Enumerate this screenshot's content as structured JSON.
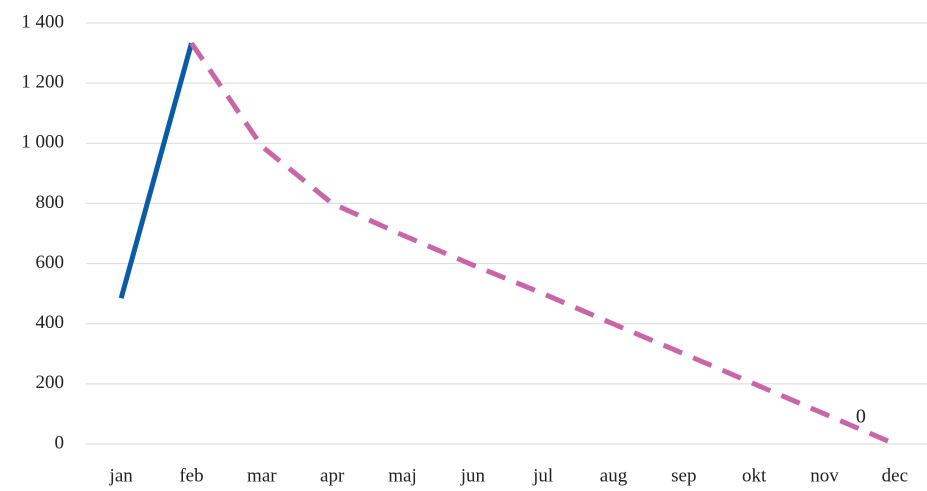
{
  "chart_data": {
    "type": "line",
    "categories": [
      "jan",
      "feb",
      "mar",
      "apr",
      "maj",
      "jun",
      "jul",
      "aug",
      "sep",
      "okt",
      "nov",
      "dec"
    ],
    "series": [
      {
        "color": "#0b5ca6",
        "dash": false,
        "values": [
          485,
          1333,
          null,
          null,
          null,
          null,
          null,
          null,
          null,
          null,
          null,
          null
        ]
      },
      {
        "color": "#c966a6",
        "dash": true,
        "values": [
          null,
          1333,
          990,
          800,
          695,
          595,
          500,
          399,
          300,
          200,
          100,
          0
        ],
        "labeled_index": 11
      }
    ],
    "ylim": [
      0,
      1400
    ],
    "yticks": [
      0,
      200,
      400,
      600,
      800,
      {
        "value": 1000,
        "label": "1 000"
      },
      {
        "value": 1200,
        "label": "1 200"
      },
      {
        "value": 1400,
        "label": "1 400"
      }
    ],
    "grid": true
  }
}
